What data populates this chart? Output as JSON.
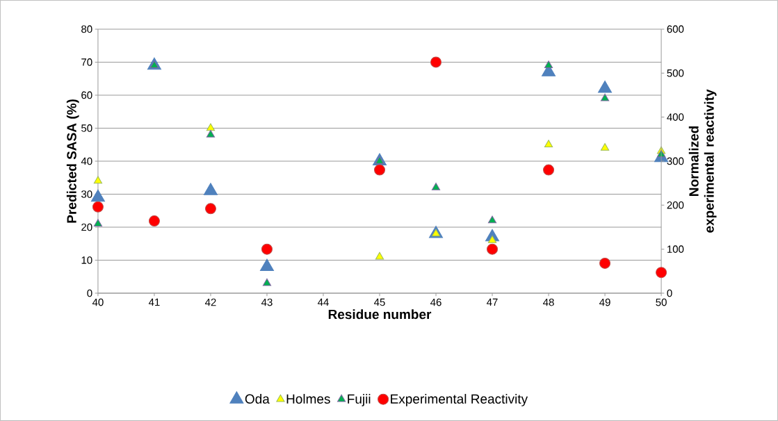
{
  "chart_data": {
    "type": "scatter",
    "xlabel": "Residue number",
    "ylabel": "Predicted SASA (%)",
    "y2label": "Normalized experimental reactivity",
    "x": [
      40,
      41,
      42,
      43,
      45,
      46,
      47,
      48,
      49,
      50
    ],
    "xlim": [
      40,
      50
    ],
    "xticks": [
      40,
      41,
      42,
      43,
      44,
      45,
      46,
      47,
      48,
      49,
      50
    ],
    "ylim": [
      0,
      80
    ],
    "yticks": [
      0,
      10,
      20,
      30,
      40,
      50,
      60,
      70,
      80
    ],
    "y2lim": [
      0,
      600
    ],
    "y2ticks": [
      0,
      100,
      200,
      300,
      400,
      500,
      600
    ],
    "grid": "y",
    "legend": "bottom",
    "series": [
      {
        "name": "Oda",
        "color": "#4f81bd",
        "marker": "triangle",
        "values": [
          29,
          69,
          31,
          8,
          40,
          18,
          17,
          67,
          62,
          41
        ]
      },
      {
        "name": "Holmes",
        "color": "#ffff00",
        "marker": "triangle",
        "values": [
          34,
          null,
          50,
          null,
          11,
          18,
          16,
          45,
          44,
          43
        ]
      },
      {
        "name": "Fujii",
        "color": "#00b050",
        "marker": "triangle",
        "values": [
          21,
          69,
          48,
          3,
          40,
          32,
          22,
          69,
          59,
          42
        ]
      },
      {
        "name": "Experimental Reactivity",
        "color": "#ff0000",
        "marker": "circle",
        "axis": "y2",
        "values": [
          196,
          164,
          192,
          100,
          280,
          525,
          100,
          280,
          68,
          47
        ]
      }
    ]
  }
}
